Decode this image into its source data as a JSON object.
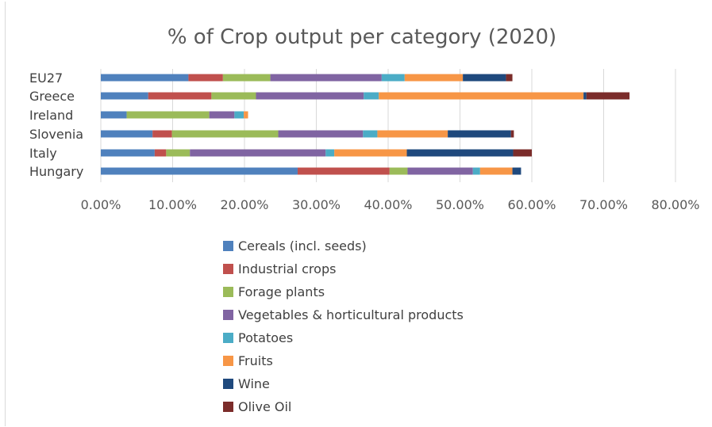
{
  "chart_data": {
    "type": "bar",
    "orientation": "horizontal",
    "stacked": true,
    "title": "% of Crop output per category (2020)",
    "xlabel": "",
    "ylabel": "",
    "xlim": [
      0,
      80
    ],
    "x_ticks": [
      "0.00%",
      "10.00%",
      "20.00%",
      "30.00%",
      "40.00%",
      "50.00%",
      "60.00%",
      "70.00%",
      "80.00%"
    ],
    "x_tick_values": [
      0,
      10,
      20,
      30,
      40,
      50,
      60,
      70,
      80
    ],
    "grid": true,
    "legend_position": "bottom",
    "categories": [
      "EU27",
      "Greece",
      "Ireland",
      "Slovenia",
      "Italy",
      "Hungary"
    ],
    "series": [
      {
        "name": "Cereals (incl. seeds)",
        "color": "#4f81bd",
        "values": [
          12.2,
          6.6,
          3.6,
          7.2,
          7.5,
          27.4
        ]
      },
      {
        "name": "Industrial crops",
        "color": "#c0504d",
        "values": [
          4.8,
          8.8,
          0.0,
          2.7,
          1.6,
          12.8
        ]
      },
      {
        "name": "Forage plants",
        "color": "#9bbb59",
        "values": [
          6.6,
          6.2,
          11.5,
          14.8,
          3.3,
          2.5
        ]
      },
      {
        "name": "Vegetables & horticultural products",
        "color": "#8064a2",
        "values": [
          15.5,
          15.0,
          3.5,
          11.8,
          18.9,
          9.1
        ]
      },
      {
        "name": "Potatoes",
        "color": "#4bacc6",
        "values": [
          3.2,
          2.1,
          1.3,
          2.0,
          1.2,
          1.0
        ]
      },
      {
        "name": "Fruits",
        "color": "#f79646",
        "values": [
          8.1,
          28.5,
          0.6,
          9.8,
          10.1,
          4.5
        ]
      },
      {
        "name": "Wine",
        "color": "#1f497d",
        "values": [
          6.0,
          0.4,
          0.0,
          8.8,
          14.8,
          1.2
        ]
      },
      {
        "name": "Olive Oil",
        "color": "#7b2c2a",
        "values": [
          0.9,
          6.0,
          0.0,
          0.4,
          2.6,
          0.0
        ]
      }
    ]
  }
}
